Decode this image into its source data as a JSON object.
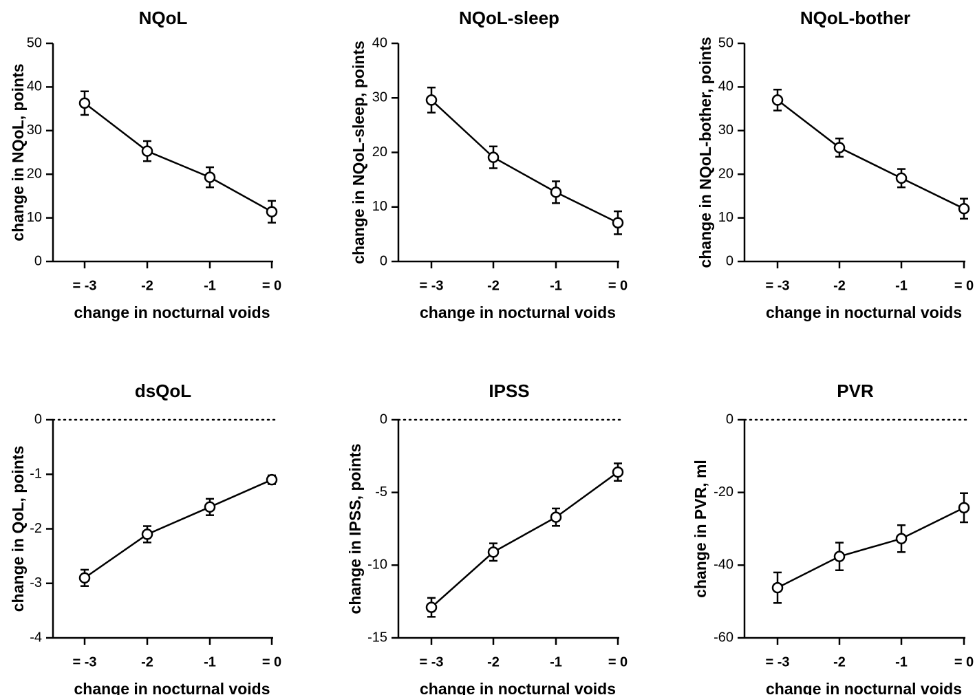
{
  "chart_data": [
    {
      "type": "line",
      "title": "NQoL",
      "xlabel": "change in nocturnal voids",
      "ylabel": "change in NQoL, points",
      "categories": [
        "= -3",
        "-2",
        "-1",
        "= 0"
      ],
      "values": [
        36.3,
        25.3,
        19.3,
        11.4
      ],
      "err": [
        2.7,
        2.3,
        2.3,
        2.5
      ],
      "ylim": [
        0,
        50
      ],
      "yticks": [
        0,
        10,
        20,
        30,
        40,
        50
      ],
      "ytick_labels": [
        "0",
        "10",
        "20",
        "30",
        "40",
        "50"
      ],
      "zero_line": false
    },
    {
      "type": "line",
      "title": "NQoL-sleep",
      "xlabel": "change in nocturnal voids",
      "ylabel": "change in NQoL-sleep, points",
      "categories": [
        "= -3",
        "-2",
        "-1",
        "= 0"
      ],
      "values": [
        29.6,
        19.1,
        12.7,
        7.1
      ],
      "err": [
        2.3,
        2.0,
        2.0,
        2.1
      ],
      "ylim": [
        0,
        40
      ],
      "yticks": [
        0,
        10,
        20,
        30,
        40
      ],
      "ytick_labels": [
        "0",
        "10",
        "20",
        "30",
        "40"
      ],
      "zero_line": false
    },
    {
      "type": "line",
      "title": "NQoL-bother",
      "xlabel": "change in nocturnal voids",
      "ylabel": "change in NQoL-bother, points",
      "categories": [
        "= -3",
        "-2",
        "-1",
        "= 0"
      ],
      "values": [
        37.0,
        26.1,
        19.1,
        12.1
      ],
      "err": [
        2.4,
        2.1,
        2.1,
        2.3
      ],
      "ylim": [
        0,
        50
      ],
      "yticks": [
        0,
        10,
        20,
        30,
        40,
        50
      ],
      "ytick_labels": [
        "0",
        "10",
        "20",
        "30",
        "40",
        "50"
      ],
      "zero_line": false
    },
    {
      "type": "line",
      "title": "dsQoL",
      "xlabel": "change in nocturnal voids",
      "ylabel": "change in QoL, points",
      "categories": [
        "= -3",
        "-2",
        "-1",
        "= 0"
      ],
      "values": [
        -2.9,
        -2.1,
        -1.6,
        -1.1
      ],
      "err": [
        0.15,
        0.15,
        0.15,
        0.08
      ],
      "ylim": [
        -4,
        0
      ],
      "yticks": [
        -4,
        -3,
        -2,
        -1,
        0
      ],
      "ytick_labels": [
        "-4",
        "-3",
        "-2",
        "-1",
        "0"
      ],
      "zero_line": true
    },
    {
      "type": "line",
      "title": "IPSS",
      "xlabel": "change in nocturnal voids",
      "ylabel": "change in IPSS, points",
      "categories": [
        "= -3",
        "-2",
        "-1",
        "= 0"
      ],
      "values": [
        -12.9,
        -9.1,
        -6.7,
        -3.6
      ],
      "err": [
        0.65,
        0.6,
        0.6,
        0.6
      ],
      "ylim": [
        -15,
        0
      ],
      "yticks": [
        -15,
        -10,
        -5,
        0
      ],
      "ytick_labels": [
        "-15",
        "-10",
        "-5",
        "0"
      ],
      "zero_line": true
    },
    {
      "type": "line",
      "title": "PVR",
      "xlabel": "change in nocturnal voids",
      "ylabel": "change in PVR, ml",
      "categories": [
        "= -3",
        "-2",
        "-1",
        "= 0"
      ],
      "values": [
        -46.2,
        -37.6,
        -32.7,
        -24.2
      ],
      "err": [
        4.2,
        3.8,
        3.7,
        4.0
      ],
      "ylim": [
        -60,
        0
      ],
      "yticks": [
        -60,
        -40,
        -20,
        0
      ],
      "ytick_labels": [
        "-60",
        "-40",
        "-20",
        "0"
      ],
      "zero_line": true
    }
  ]
}
